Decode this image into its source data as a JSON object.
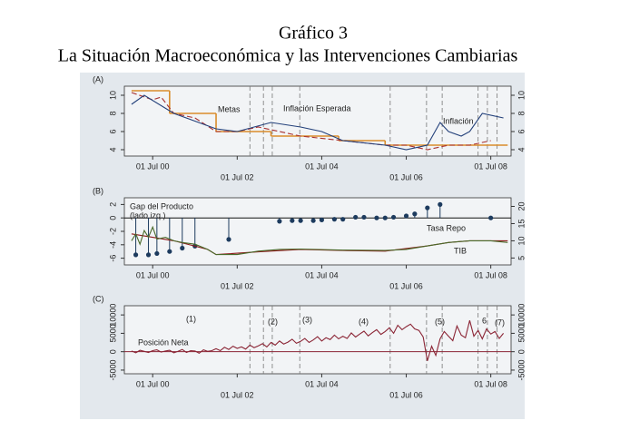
{
  "title": "Gráfico 3",
  "subtitle": "La Situación Macroeconómica y las Intervenciones Cambiarias",
  "chart_data": [
    {
      "type": "line",
      "panel_label": "(A)",
      "xlim": [
        1999.83,
        2008.98
      ],
      "xticks": [
        {
          "value": 2000.5,
          "label": "01 Jul 00"
        },
        {
          "value": 2002.5,
          "label": "01 Jul 02"
        },
        {
          "value": 2004.5,
          "label": "01 Jul 04"
        },
        {
          "value": 2006.5,
          "label": "01 Jul 06"
        },
        {
          "value": 2008.5,
          "label": "01 Jul 08"
        }
      ],
      "ylim": [
        3.3,
        11
      ],
      "yticks": [
        4,
        6,
        8,
        10
      ],
      "y2lim": [
        3.3,
        11
      ],
      "y2ticks": [
        4,
        6,
        8,
        10
      ],
      "vlines": [
        2002.8,
        2003.12,
        2003.33,
        2003.98,
        2006.12,
        2006.98,
        2007.35,
        2008.2,
        2008.42,
        2008.65
      ],
      "series": [
        {
          "name": "Metas",
          "color": "#d98c2b",
          "style": "step",
          "x": [
            2000.0,
            2000.9,
            2002.0,
            2003.3,
            2004.9,
            2006.0,
            2008.9
          ],
          "values": [
            10.5,
            8,
            6,
            5.5,
            5,
            4.5,
            4.5
          ]
        },
        {
          "name": "Inflación Esperada",
          "color": "#a83232",
          "style": "dashed",
          "x": [
            2000.0,
            2000.5,
            2000.7,
            2001.0,
            2001.5,
            2002.0,
            2002.5,
            2003.0,
            2003.5,
            2004.0,
            2005.0,
            2006.0,
            2006.5,
            2007.0,
            2007.5,
            2008.0,
            2008.5
          ],
          "values": [
            10.3,
            9.5,
            9.8,
            8,
            7.5,
            6,
            6,
            6.5,
            6,
            5.5,
            5,
            4.5,
            4.5,
            4,
            4.5,
            4.5,
            5
          ]
        },
        {
          "name": "Inflación",
          "color": "#23407a",
          "style": "solid",
          "x": [
            2000.0,
            2000.3,
            2001.0,
            2002.0,
            2002.5,
            2003.3,
            2004.0,
            2004.5,
            2005.0,
            2006.0,
            2006.5,
            2007.0,
            2007.3,
            2007.5,
            2007.8,
            2008.0,
            2008.3,
            2008.8
          ],
          "values": [
            9,
            10,
            8,
            6.3,
            6,
            7,
            6.5,
            6,
            5,
            4.5,
            4,
            4.5,
            7,
            6,
            5.5,
            6,
            8,
            7.5
          ]
        }
      ]
    },
    {
      "type": "line",
      "panel_label": "(B)",
      "xlim": [
        1999.83,
        2008.98
      ],
      "xticks": [
        {
          "value": 2000.5,
          "label": "01 Jul 00"
        },
        {
          "value": 2002.5,
          "label": "01 Jul 02"
        },
        {
          "value": 2004.5,
          "label": "01 Jul 04"
        },
        {
          "value": 2006.5,
          "label": "01 Jul 06"
        },
        {
          "value": 2008.5,
          "label": "01 Jul 08"
        }
      ],
      "ylim": [
        -7,
        3
      ],
      "yticks": [
        -6,
        -4,
        -2,
        0,
        2
      ],
      "y2lim": [
        3,
        22.5
      ],
      "y2ticks": [
        5,
        10,
        15,
        20
      ],
      "hline": 0,
      "annotations": [
        "(lado izq.)"
      ],
      "series": [
        {
          "name": "Gap del Producto",
          "color": "#1d3b5e",
          "style": "lollipop",
          "x": [
            2000.1,
            2000.4,
            2000.6,
            2000.9,
            2001.2,
            2001.5,
            2002.3,
            2003.5,
            2003.8,
            2004.0,
            2004.3,
            2004.5,
            2004.8,
            2005.0,
            2005.3,
            2005.5,
            2005.8,
            2006.0,
            2006.2,
            2006.5,
            2006.7,
            2007.0,
            2007.3,
            2008.5
          ],
          "values": [
            -5.5,
            -5.5,
            -5.3,
            -5,
            -4.5,
            -4.2,
            -3.2,
            -0.5,
            -0.4,
            -0.4,
            -0.4,
            -0.3,
            -0.2,
            -0.2,
            0.1,
            0.1,
            0,
            0,
            0.1,
            0.3,
            0.6,
            1.5,
            2,
            0
          ]
        },
        {
          "name": "Tasa Repo",
          "color": "#8b1a1a",
          "style": "solid",
          "axis": "y2",
          "x": [
            2000.0,
            2000.5,
            2001.0,
            2001.8,
            2002.0,
            2003.0,
            2004.0,
            2005.0,
            2006.0,
            2007.0,
            2007.5,
            2008.0,
            2008.9
          ],
          "values": [
            12,
            11,
            10,
            7.5,
            6,
            6.8,
            7.5,
            7.2,
            7,
            8.5,
            9.5,
            10,
            10
          ]
        },
        {
          "name": "TIB",
          "color": "#4a6a2a",
          "style": "solid",
          "axis": "y2",
          "x": [
            2000.0,
            2000.1,
            2000.2,
            2000.3,
            2000.4,
            2000.5,
            2000.6,
            2000.8,
            2001.0,
            2001.2,
            2001.5,
            2001.8,
            2002.0,
            2002.5,
            2003.0,
            2003.5,
            2004.0,
            2005.0,
            2006.0,
            2006.5,
            2007.0,
            2007.5,
            2008.0,
            2008.5,
            2008.9
          ],
          "values": [
            10,
            12,
            9,
            13,
            11,
            14,
            10.5,
            11,
            10,
            9.5,
            9,
            7.5,
            6,
            6,
            7,
            7.5,
            7.6,
            7.3,
            7.2,
            7.5,
            8.5,
            9.5,
            10,
            10,
            9.5
          ]
        }
      ]
    },
    {
      "type": "line",
      "panel_label": "(C)",
      "xlim": [
        1999.83,
        2008.98
      ],
      "xticks": [
        {
          "value": 2000.5,
          "label": "01 Jul 00"
        },
        {
          "value": 2002.5,
          "label": "01 Jul 02"
        },
        {
          "value": 2004.5,
          "label": "01 Jul 04"
        },
        {
          "value": 2006.5,
          "label": "01 Jul 06"
        },
        {
          "value": 2008.5,
          "label": "01 Jul 08"
        }
      ],
      "ylim": [
        -6000,
        12500
      ],
      "yticks": [
        -5000,
        0,
        5000,
        10000
      ],
      "y2lim": [
        -6000,
        12500
      ],
      "y2ticks": [
        -5000,
        0,
        5000,
        10000
      ],
      "hline": 0,
      "vlines": [
        2002.8,
        2003.12,
        2003.33,
        2003.98,
        2006.12,
        2006.98,
        2007.35,
        2008.2,
        2008.42,
        2008.65
      ],
      "annotations": [
        "(1)",
        "(2)",
        "(3)",
        "(4)",
        "(5)",
        "6",
        "(7)"
      ],
      "series": [
        {
          "name": "Posición Neta",
          "color": "#8b2535",
          "style": "solid",
          "x": [
            2000.0,
            2000.1,
            2000.2,
            2000.3,
            2000.4,
            2000.5,
            2000.6,
            2000.7,
            2000.8,
            2000.9,
            2001.0,
            2001.1,
            2001.2,
            2001.3,
            2001.4,
            2001.5,
            2001.6,
            2001.7,
            2001.8,
            2001.9,
            2002.0,
            2002.1,
            2002.2,
            2002.3,
            2002.4,
            2002.5,
            2002.6,
            2002.7,
            2002.8,
            2002.9,
            2003.0,
            2003.1,
            2003.2,
            2003.3,
            2003.4,
            2003.5,
            2003.6,
            2003.7,
            2003.8,
            2003.9,
            2004.0,
            2004.1,
            2004.2,
            2004.3,
            2004.4,
            2004.5,
            2004.6,
            2004.7,
            2004.8,
            2004.9,
            2005.0,
            2005.1,
            2005.2,
            2005.3,
            2005.4,
            2005.5,
            2005.6,
            2005.7,
            2005.8,
            2005.9,
            2006.0,
            2006.1,
            2006.2,
            2006.3,
            2006.4,
            2006.5,
            2006.6,
            2006.7,
            2006.8,
            2006.9,
            2007.0,
            2007.1,
            2007.2,
            2007.3,
            2007.4,
            2007.5,
            2007.6,
            2007.7,
            2007.8,
            2007.9,
            2008.0,
            2008.1,
            2008.2,
            2008.3,
            2008.4,
            2008.5,
            2008.6,
            2008.7,
            2008.8
          ],
          "values": [
            200,
            -300,
            400,
            100,
            -200,
            300,
            500,
            -100,
            200,
            400,
            -300,
            100,
            600,
            -200,
            300,
            200,
            -400,
            500,
            100,
            300,
            800,
            300,
            1200,
            600,
            1500,
            900,
            1300,
            700,
            1800,
            1100,
            1600,
            2200,
            1300,
            2500,
            1800,
            2900,
            2100,
            2600,
            3400,
            2300,
            2800,
            3600,
            2500,
            3200,
            4100,
            2900,
            3800,
            3300,
            4500,
            3500,
            4200,
            3600,
            5100,
            4000,
            4800,
            5600,
            4300,
            5200,
            6000,
            4700,
            5500,
            6500,
            5000,
            7200,
            6000,
            6800,
            7500,
            6200,
            5800,
            4000,
            -2500,
            1500,
            -1000,
            3500,
            5500,
            4200,
            3000,
            7000,
            4500,
            3800,
            8500,
            4200,
            5800,
            3500,
            6200,
            4800,
            5500,
            3600,
            5000
          ]
        }
      ]
    }
  ]
}
